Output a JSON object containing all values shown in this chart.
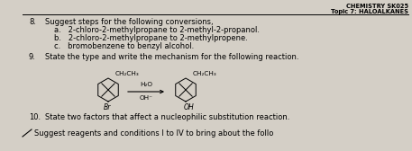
{
  "header_right_line1": "CHEMISTRY SK025",
  "header_right_line2": "Topic 7: HALOALKANES",
  "bg_color": "#d4cfc6",
  "q8_num": "8.",
  "q8_text": "Suggest steps for the following conversions,",
  "q8a": "a.   2-chloro-2-methylpropane to 2-methyl-2-propanol.",
  "q8b": "b.   2-chloro-2-methylpropane to 2-methylpropene.",
  "q8c": "c.   bromobenzene to benzyl alcohol.",
  "q9_num": "9.",
  "q9_text": "State the type and write the mechanism for the following reaction.",
  "q9_reagent": "H₂O",
  "q9_reagent2": "OH⁻",
  "q9_ch2ch3_left": "CH₂CH₃",
  "q9_br": "Br",
  "q9_ch2ch3_right": "CH₂CH₃",
  "q9_oh": "OH",
  "q10_num": "10.",
  "q10_text": "State two factors that affect a nucleophilic substitution reaction.",
  "q11_partial": "Suggest reagents and conditions",
  "q11_partial2": " I to IV to bring about the follo",
  "header_fontsize": 4.8,
  "body_fontsize": 6.0,
  "small_fontsize": 5.2,
  "italic_fontsize": 5.5
}
